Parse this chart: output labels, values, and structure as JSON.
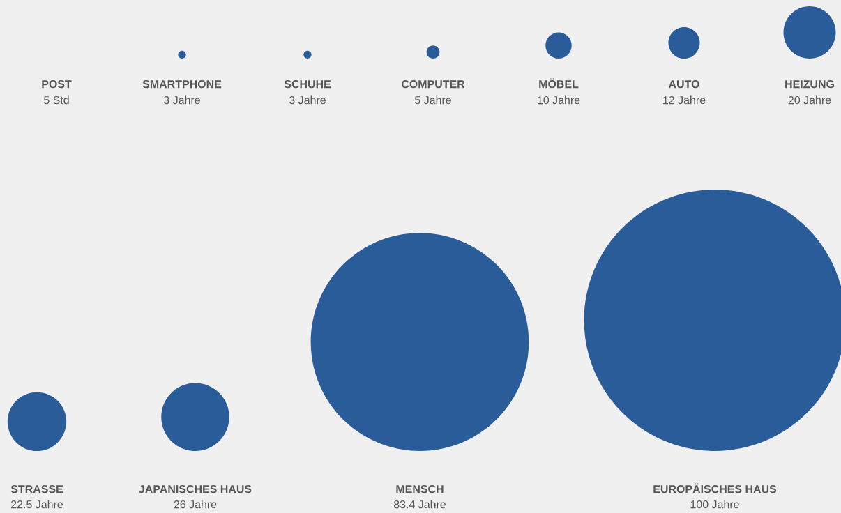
{
  "chart_data": {
    "type": "other",
    "categories": [
      "POST",
      "SMARTPHONE",
      "SCHUHE",
      "COMPUTER",
      "MÖBEL",
      "AUTO",
      "HEIZUNG",
      "STRASSE",
      "JAPANISCHES HAUS",
      "MENSCH",
      "EUROPÄISCHES HAUS"
    ],
    "values": [
      null,
      3,
      3,
      5,
      10,
      12,
      20,
      22.5,
      26,
      83.4,
      100
    ],
    "value_labels": [
      "5 Std",
      "3 Jahre",
      "3 Jahre",
      "5 Jahre",
      "10 Jahre",
      "12 Jahre",
      "20 Jahre",
      "22.5 Jahre",
      "26 Jahre",
      "83.4 Jahre",
      "100 Jahre"
    ],
    "color": "#2a5c9a"
  }
}
